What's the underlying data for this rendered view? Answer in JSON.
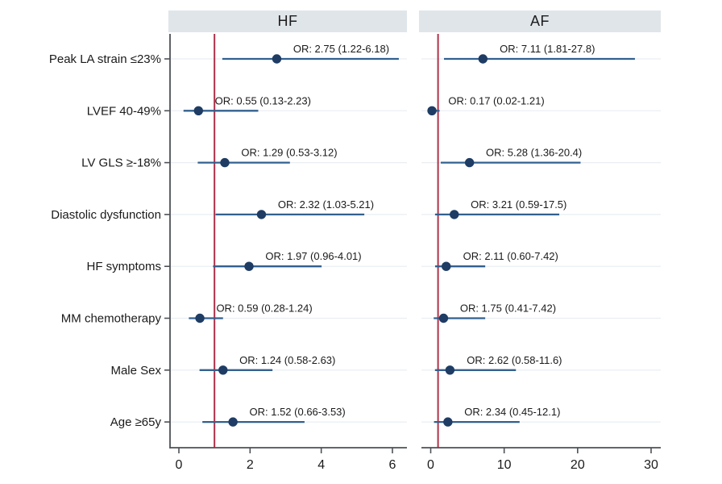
{
  "colors": {
    "marker": "#1e3c64",
    "ci_line": "#32608f",
    "reference_line": "#b03049",
    "header_bg": "#e0e5e9",
    "gridline": "#e9eef2",
    "axis": "#4d5156",
    "text": "#1a1a1a"
  },
  "chart_data": [
    {
      "type": "scatter",
      "subtype": "forest-plot",
      "panel_title": "HF",
      "categories": [
        "Peak LA strain ≤23%",
        "LVEF 40-49%",
        "LV GLS ≥-18%",
        "Diastolic dysfunction",
        "HF symptoms",
        "MM chemotherapy",
        "Male Sex",
        "Age ≥65y"
      ],
      "or_values": [
        2.75,
        0.55,
        1.29,
        2.32,
        1.97,
        0.59,
        1.24,
        1.52
      ],
      "ci_low": [
        1.22,
        0.13,
        0.53,
        1.03,
        0.96,
        0.28,
        0.58,
        0.66
      ],
      "ci_high": [
        6.18,
        2.23,
        3.12,
        5.21,
        4.01,
        1.24,
        2.63,
        3.53
      ],
      "point_labels": [
        "OR: 2.75 (1.22-6.18)",
        "OR: 0.55 (0.13-2.23)",
        "OR: 1.29 (0.53-3.12)",
        "OR: 2.32 (1.03-5.21)",
        "OR: 1.97 (0.96-4.01)",
        "OR: 0.59 (0.28-1.24)",
        "OR: 1.24 (0.58-2.63)",
        "OR: 1.52 (0.66-3.53)"
      ],
      "x_ticks": [
        0,
        2,
        4,
        6
      ],
      "x_tick_labels": [
        "0",
        "2",
        "4",
        "6"
      ],
      "xlim": [
        0,
        6.4
      ],
      "reference_line_x": 1,
      "xlabel": "",
      "ylabel": "",
      "legend": "none",
      "grid": "horizontal"
    },
    {
      "type": "scatter",
      "subtype": "forest-plot",
      "panel_title": "AF",
      "categories": [
        "Peak LA strain ≤23%",
        "LVEF 40-49%",
        "LV GLS ≥-18%",
        "Diastolic dysfunction",
        "HF symptoms",
        "MM chemotherapy",
        "Male Sex",
        "Age ≥65y"
      ],
      "or_values": [
        7.11,
        0.17,
        5.28,
        3.21,
        2.11,
        1.75,
        2.62,
        2.34
      ],
      "ci_low": [
        1.81,
        0.02,
        1.36,
        0.59,
        0.6,
        0.41,
        0.58,
        0.45
      ],
      "ci_high": [
        27.8,
        1.21,
        20.4,
        17.5,
        7.42,
        7.42,
        11.6,
        12.1
      ],
      "point_labels": [
        "OR: 7.11 (1.81-27.8)",
        "OR: 0.17 (0.02-1.21)",
        "OR: 5.28 (1.36-20.4)",
        "OR: 3.21 (0.59-17.5)",
        "OR: 2.11 (0.60-7.42)",
        "OR: 1.75 (0.41-7.42)",
        "OR: 2.62 (0.58-11.6)",
        "OR: 2.34 (0.45-12.1)"
      ],
      "x_ticks": [
        0,
        10,
        20,
        30
      ],
      "x_tick_labels": [
        "0",
        "10",
        "20",
        "30"
      ],
      "xlim": [
        0,
        31.3
      ],
      "reference_line_x": 1,
      "xlabel": "",
      "ylabel": "",
      "legend": "none",
      "grid": "horizontal"
    }
  ]
}
